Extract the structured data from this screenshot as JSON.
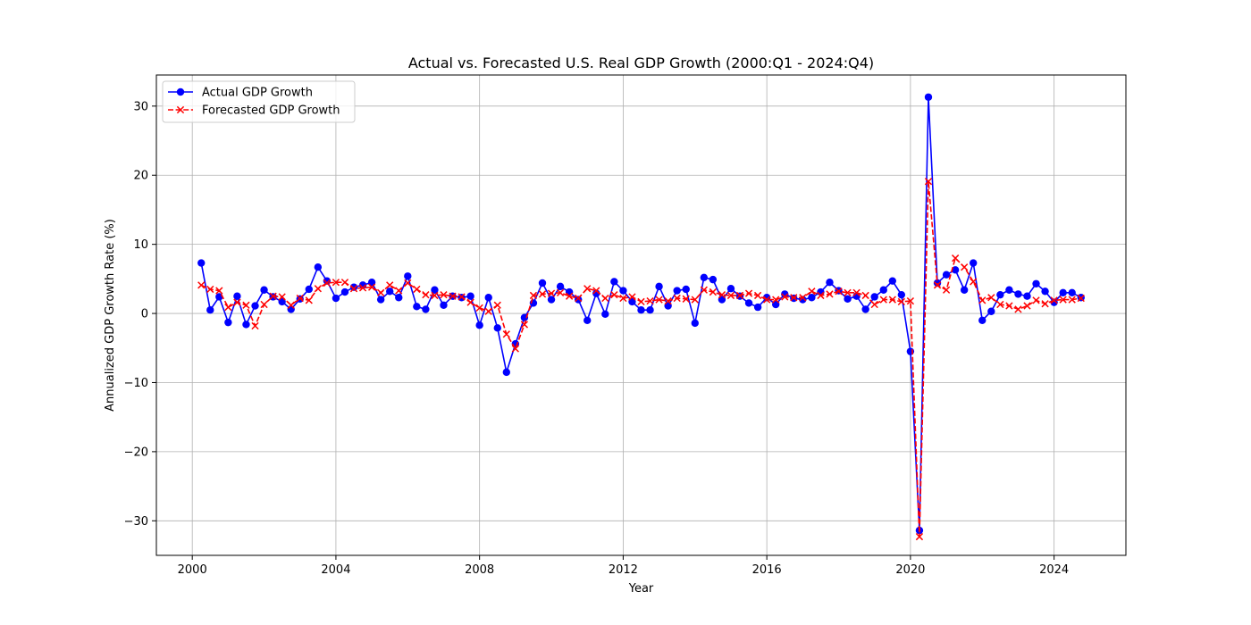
{
  "chart_data": {
    "type": "line",
    "title": "Actual vs. Forecasted U.S. Real GDP Growth (2000:Q1 - 2024:Q4)",
    "xlabel": "Year",
    "ylabel": "Annualized GDP Growth Rate (%)",
    "xlim": [
      1999.0,
      2026.0
    ],
    "ylim": [
      -35.0,
      34.5
    ],
    "xticks": [
      2000,
      2004,
      2008,
      2012,
      2016,
      2020,
      2024
    ],
    "yticks": [
      -30,
      -20,
      -10,
      0,
      10,
      20,
      30
    ],
    "xtick_labels": [
      "2000",
      "2004",
      "2008",
      "2012",
      "2016",
      "2020",
      "2024"
    ],
    "ytick_labels": [
      "−30",
      "−20",
      "−10",
      "0",
      "10",
      "20",
      "30"
    ],
    "grid": true,
    "legend_position": "upper-left",
    "x": [
      2000.25,
      2000.5,
      2000.75,
      2001.0,
      2001.25,
      2001.5,
      2001.75,
      2002.0,
      2002.25,
      2002.5,
      2002.75,
      2003.0,
      2003.25,
      2003.5,
      2003.75,
      2004.0,
      2004.25,
      2004.5,
      2004.75,
      2005.0,
      2005.25,
      2005.5,
      2005.75,
      2006.0,
      2006.25,
      2006.5,
      2006.75,
      2007.0,
      2007.25,
      2007.5,
      2007.75,
      2008.0,
      2008.25,
      2008.5,
      2008.75,
      2009.0,
      2009.25,
      2009.5,
      2009.75,
      2010.0,
      2010.25,
      2010.5,
      2010.75,
      2011.0,
      2011.25,
      2011.5,
      2011.75,
      2012.0,
      2012.25,
      2012.5,
      2012.75,
      2013.0,
      2013.25,
      2013.5,
      2013.75,
      2014.0,
      2014.25,
      2014.5,
      2014.75,
      2015.0,
      2015.25,
      2015.5,
      2015.75,
      2016.0,
      2016.25,
      2016.5,
      2016.75,
      2017.0,
      2017.25,
      2017.5,
      2017.75,
      2018.0,
      2018.25,
      2018.5,
      2018.75,
      2019.0,
      2019.25,
      2019.5,
      2019.75,
      2020.0,
      2020.25,
      2020.5,
      2020.75,
      2021.0,
      2021.25,
      2021.5,
      2021.75,
      2022.0,
      2022.25,
      2022.5,
      2022.75,
      2023.0,
      2023.25,
      2023.5,
      2023.75,
      2024.0,
      2024.25,
      2024.5,
      2024.75
    ],
    "series": [
      {
        "name": "Actual GDP Growth",
        "color": "#0000ff",
        "line_style": "solid",
        "marker": "circle",
        "values": [
          7.3,
          0.5,
          2.4,
          -1.3,
          2.5,
          -1.6,
          1.1,
          3.4,
          2.4,
          1.7,
          0.6,
          2.1,
          3.5,
          6.7,
          4.7,
          2.2,
          3.1,
          3.8,
          4.1,
          4.5,
          2.0,
          3.2,
          2.3,
          5.4,
          1.0,
          0.6,
          3.4,
          1.2,
          2.5,
          2.3,
          2.5,
          -1.7,
          2.3,
          -2.1,
          -8.5,
          -4.4,
          -0.6,
          1.5,
          4.4,
          2.0,
          3.9,
          3.1,
          2.0,
          -1.0,
          2.9,
          -0.1,
          4.6,
          3.3,
          1.7,
          0.5,
          0.5,
          3.9,
          1.1,
          3.3,
          3.5,
          -1.4,
          5.2,
          4.9,
          2.0,
          3.6,
          2.5,
          1.5,
          0.9,
          2.3,
          1.3,
          2.8,
          2.2,
          2.0,
          2.3,
          3.1,
          4.5,
          3.3,
          2.1,
          2.5,
          0.6,
          2.4,
          3.4,
          4.7,
          2.7,
          -5.5,
          -31.4,
          31.3,
          4.4,
          5.6,
          6.3,
          3.4,
          7.3,
          -1.0,
          0.3,
          2.7,
          3.4,
          2.8,
          2.5,
          4.3,
          3.2,
          1.6,
          3.0,
          3.0,
          2.3
        ]
      },
      {
        "name": "Forecasted GDP Growth",
        "color": "#ff0000",
        "line_style": "dashed",
        "marker": "x",
        "values": [
          4.1,
          3.5,
          3.3,
          0.9,
          1.6,
          1.2,
          -1.8,
          1.3,
          2.5,
          2.4,
          1.2,
          2.2,
          1.9,
          3.6,
          4.4,
          4.5,
          4.5,
          3.6,
          3.7,
          3.8,
          3.0,
          4.1,
          3.3,
          4.4,
          3.5,
          2.7,
          2.6,
          2.7,
          2.5,
          2.4,
          1.6,
          0.8,
          0.3,
          1.2,
          -3.0,
          -5.1,
          -1.6,
          2.6,
          2.8,
          2.9,
          3.0,
          2.5,
          2.2,
          3.6,
          3.3,
          2.2,
          2.7,
          2.2,
          2.4,
          1.7,
          1.8,
          2.0,
          1.8,
          2.2,
          2.1,
          2.0,
          3.4,
          3.1,
          2.7,
          2.6,
          2.6,
          2.9,
          2.6,
          2.0,
          2.0,
          2.4,
          2.3,
          2.3,
          3.2,
          2.6,
          2.8,
          3.2,
          3.0,
          3.0,
          2.6,
          1.3,
          2.0,
          2.0,
          1.7,
          1.8,
          -32.3,
          19.1,
          4.1,
          3.4,
          8.0,
          6.7,
          4.6,
          1.9,
          2.3,
          1.3,
          1.1,
          0.6,
          1.1,
          1.9,
          1.4,
          1.9,
          2.0,
          2.0,
          2.2
        ]
      }
    ]
  }
}
